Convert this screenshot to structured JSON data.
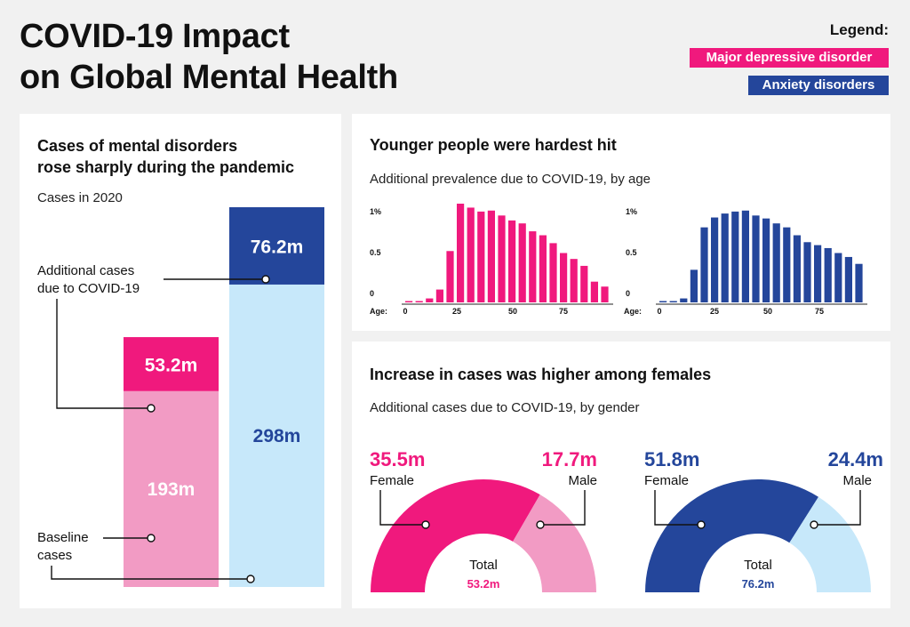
{
  "header": {
    "title_line1": "COVID-19 Impact",
    "title_line2": "on Global Mental Health"
  },
  "legend": {
    "title": "Legend:",
    "items": [
      {
        "label": "Major depressive disorder",
        "color": "#f0197d"
      },
      {
        "label": "Anxiety disorders",
        "color": "#24469b"
      }
    ]
  },
  "colors": {
    "mdd_dark": "#f0197d",
    "mdd_light": "#f29bc4",
    "anx_dark": "#24469b",
    "anx_light": "#c7e8fa",
    "text": "#111111"
  },
  "chart_data": [
    {
      "type": "bar",
      "stacked": true,
      "title": "Cases of mental disorders rose sharply during the pandemic",
      "title_line1": "Cases of mental disorders",
      "title_line2": "rose sharply during the pandemic",
      "subtitle": "Cases in 2020",
      "categories": [
        "Major depressive disorder",
        "Anxiety disorders"
      ],
      "series": [
        {
          "name": "Baseline cases",
          "label_line1": "Baseline",
          "label_line2": "cases",
          "values": [
            193,
            298
          ],
          "value_labels": [
            "193m",
            "298m"
          ]
        },
        {
          "name": "Additional cases due to COVID-19",
          "label_line1": "Additional cases",
          "label_line2": "due to COVID-19",
          "values": [
            53.2,
            76.2
          ],
          "value_labels": [
            "53.2m",
            "76.2m"
          ]
        }
      ],
      "unit": "million"
    },
    {
      "type": "bar",
      "title": "Younger people were hardest hit",
      "subtitle": "Additional prevalence due to COVID-19, by age",
      "xlabel": "Age:",
      "ylim": [
        0,
        1
      ],
      "y_ticks": [
        "0",
        "0.5",
        "1%"
      ],
      "x_ticks": [
        "0",
        "25",
        "50",
        "75"
      ],
      "x": [
        0,
        5,
        10,
        15,
        20,
        25,
        30,
        35,
        40,
        45,
        50,
        55,
        60,
        65,
        70,
        75,
        80,
        85,
        90,
        95
      ],
      "series": [
        {
          "name": "Major depressive disorder",
          "values": [
            0,
            0,
            0.04,
            0.13,
            0.52,
            1.0,
            0.96,
            0.92,
            0.93,
            0.88,
            0.83,
            0.8,
            0.72,
            0.68,
            0.6,
            0.5,
            0.44,
            0.37,
            0.21,
            0.16
          ]
        },
        {
          "name": "Anxiety disorders",
          "values": [
            0,
            0,
            0.04,
            0.33,
            0.76,
            0.86,
            0.9,
            0.92,
            0.93,
            0.88,
            0.85,
            0.8,
            0.76,
            0.68,
            0.61,
            0.58,
            0.55,
            0.5,
            0.46,
            0.39
          ]
        }
      ]
    },
    {
      "type": "pie",
      "variant": "semi-donut",
      "title": "Increase in cases was higher among females",
      "subtitle": "Additional cases due to COVID-19, by gender",
      "charts": [
        {
          "series": "Major depressive disorder",
          "total_label": "Total",
          "total_value": "53.2m",
          "slices": [
            {
              "label": "Female",
              "value": 35.5,
              "value_label": "35.5m"
            },
            {
              "label": "Male",
              "value": 17.7,
              "value_label": "17.7m"
            }
          ]
        },
        {
          "series": "Anxiety disorders",
          "total_label": "Total",
          "total_value": "76.2m",
          "slices": [
            {
              "label": "Female",
              "value": 51.8,
              "value_label": "51.8m"
            },
            {
              "label": "Male",
              "value": 24.4,
              "value_label": "24.4m"
            }
          ]
        }
      ]
    }
  ]
}
